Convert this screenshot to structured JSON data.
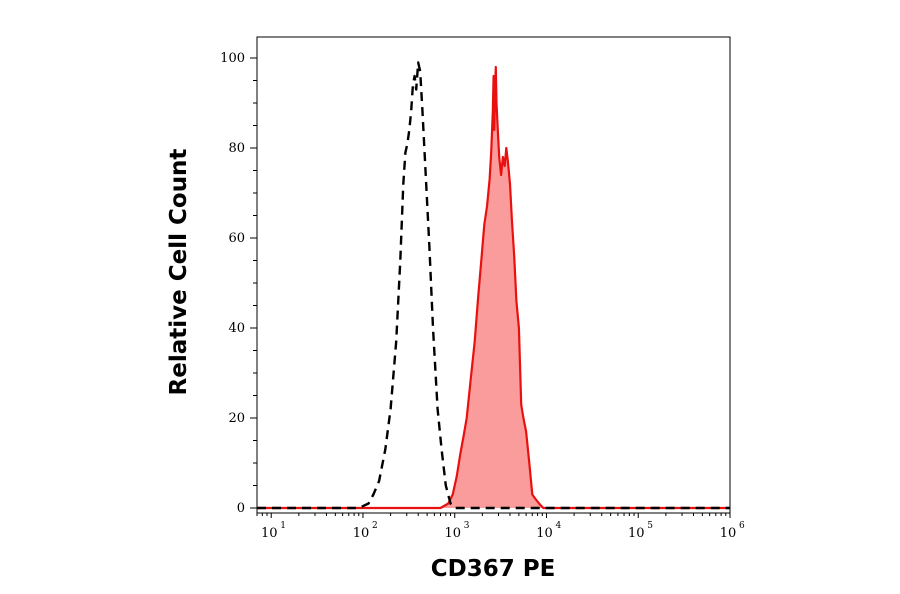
{
  "chart_data": {
    "type": "area",
    "xlabel": "CD367 PE",
    "ylabel": "Relative Cell Count",
    "x_scale": "log",
    "xlim": [
      7,
      1000000
    ],
    "ylim": [
      0,
      100
    ],
    "x_tick_labels": [
      {
        "base": "10",
        "exp": "1",
        "value": 10
      },
      {
        "base": "10",
        "exp": "2",
        "value": 100
      },
      {
        "base": "10",
        "exp": "3",
        "value": 1000
      },
      {
        "base": "10",
        "exp": "4",
        "value": 10000
      },
      {
        "base": "10",
        "exp": "5",
        "value": 100000
      },
      {
        "base": "10",
        "exp": "6",
        "value": 1000000
      }
    ],
    "y_ticks": [
      0,
      20,
      40,
      60,
      80,
      100
    ],
    "grid": false,
    "series": [
      {
        "style": "dashed",
        "color": "#000000",
        "fill": "none",
        "points": [
          [
            7,
            0
          ],
          [
            90,
            0
          ],
          [
            115,
            1
          ],
          [
            130,
            3
          ],
          [
            150,
            6
          ],
          [
            175,
            13
          ],
          [
            200,
            22
          ],
          [
            230,
            37
          ],
          [
            255,
            55
          ],
          [
            275,
            72
          ],
          [
            290,
            79
          ],
          [
            305,
            81
          ],
          [
            320,
            84
          ],
          [
            335,
            88
          ],
          [
            350,
            94
          ],
          [
            365,
            96
          ],
          [
            380,
            93
          ],
          [
            400,
            99
          ],
          [
            420,
            97
          ],
          [
            445,
            88
          ],
          [
            480,
            75
          ],
          [
            530,
            58
          ],
          [
            580,
            40
          ],
          [
            650,
            22
          ],
          [
            720,
            13
          ],
          [
            800,
            5
          ],
          [
            900,
            1
          ],
          [
            1000,
            0
          ],
          [
            1000000,
            0
          ]
        ]
      },
      {
        "style": "solid",
        "color": "#e8110f",
        "fill": "#fa9c9c",
        "points": [
          [
            7,
            0
          ],
          [
            700,
            0
          ],
          [
            850,
            1
          ],
          [
            950,
            3
          ],
          [
            1050,
            7
          ],
          [
            1150,
            12
          ],
          [
            1250,
            16
          ],
          [
            1350,
            20
          ],
          [
            1500,
            29
          ],
          [
            1650,
            37
          ],
          [
            1800,
            47
          ],
          [
            1950,
            55
          ],
          [
            2100,
            63
          ],
          [
            2250,
            67
          ],
          [
            2400,
            73
          ],
          [
            2500,
            79
          ],
          [
            2600,
            88
          ],
          [
            2650,
            96
          ],
          [
            2700,
            84
          ],
          [
            2750,
            93
          ],
          [
            2800,
            98
          ],
          [
            2850,
            90
          ],
          [
            2950,
            84
          ],
          [
            3050,
            78
          ],
          [
            3200,
            74
          ],
          [
            3350,
            78
          ],
          [
            3500,
            76
          ],
          [
            3650,
            80
          ],
          [
            3800,
            77
          ],
          [
            4000,
            72
          ],
          [
            4200,
            64
          ],
          [
            4450,
            56
          ],
          [
            4700,
            46
          ],
          [
            5000,
            40
          ],
          [
            5300,
            23
          ],
          [
            5600,
            20
          ],
          [
            6000,
            17
          ],
          [
            6500,
            10
          ],
          [
            7000,
            3
          ],
          [
            7600,
            2
          ],
          [
            8300,
            1
          ],
          [
            9200,
            0
          ],
          [
            1000000,
            0
          ]
        ]
      }
    ]
  }
}
